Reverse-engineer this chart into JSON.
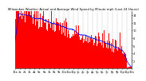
{
  "title": "Milwaukee Weather Actual and Average Wind Speed by Minute mph (Last 24 Hours)",
  "background_color": "#ffffff",
  "plot_bg_color": "#ffffff",
  "bar_color": "#ff0000",
  "line_color": "#0000ff",
  "grid_color": "#888888",
  "n_points": 1440,
  "ylim": [
    0,
    15
  ],
  "yticks": [
    2,
    4,
    6,
    8,
    10,
    12,
    14
  ],
  "n_gridlines": 24,
  "title_fontsize": 2.8,
  "tick_fontsize": 2.5
}
